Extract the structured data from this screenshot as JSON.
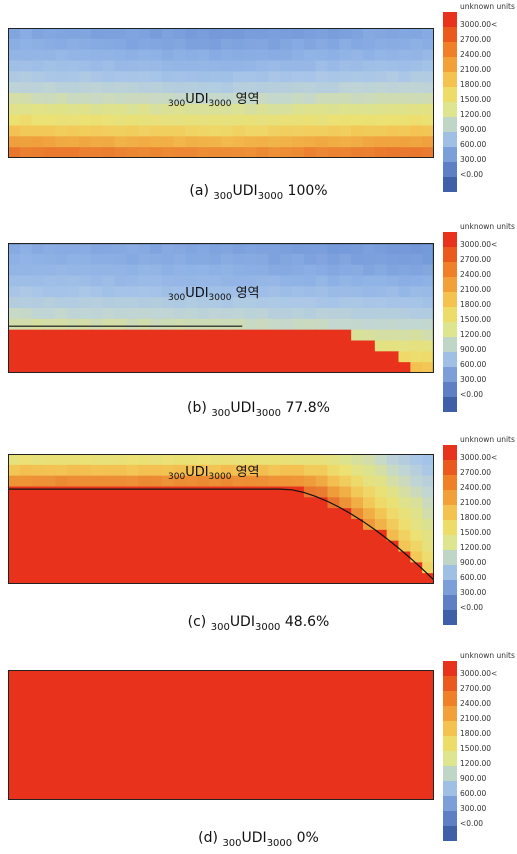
{
  "legend": {
    "unit_label": "unknown units",
    "labels": [
      "3000.00<",
      "2700.00",
      "2400.00",
      "2100.00",
      "1800.00",
      "1500.00",
      "1200.00",
      "900.00",
      "600.00",
      "300.00",
      "<0.00"
    ],
    "colors": [
      "#e8321c",
      "#ea5a1e",
      "#ef8027",
      "#f2a03a",
      "#f5c14f",
      "#eddd68",
      "#dde58e",
      "#bfd6c6",
      "#9fbfe4",
      "#7c9fd9",
      "#5c7fc6",
      "#3f5fa8"
    ]
  },
  "region_label": {
    "prefix": "300",
    "main": "UDI",
    "suffix": "3000",
    "word": "영역"
  },
  "chart_data": [
    {
      "type": "heatmap",
      "caption": {
        "tag": "(a)",
        "pre": "300",
        "main": "UDI",
        "sub": "3000",
        "value": "100%"
      },
      "udi_percent": 100,
      "colorscale": {
        "min": 0,
        "max": 3000,
        "unit": "unknown units"
      }
    },
    {
      "type": "heatmap",
      "caption": {
        "tag": "(b)",
        "pre": "300",
        "main": "UDI",
        "sub": "3000",
        "value": "77.8%"
      },
      "udi_percent": 77.8,
      "colorscale": {
        "min": 0,
        "max": 3000,
        "unit": "unknown units"
      }
    },
    {
      "type": "heatmap",
      "caption": {
        "tag": "(c)",
        "pre": "300",
        "main": "UDI",
        "sub": "3000",
        "value": "48.6%"
      },
      "udi_percent": 48.6,
      "colorscale": {
        "min": 0,
        "max": 3000,
        "unit": "unknown units"
      }
    },
    {
      "type": "heatmap",
      "caption": {
        "tag": "(d)",
        "pre": "300",
        "main": "UDI",
        "sub": "3000",
        "value": "0%"
      },
      "udi_percent": 0,
      "colorscale": {
        "min": 0,
        "max": 3000,
        "unit": "unknown units"
      }
    }
  ]
}
